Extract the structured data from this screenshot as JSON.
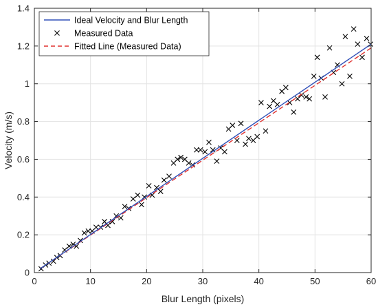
{
  "chart_data": {
    "type": "line",
    "xlabel": "Blur Length (pixels)",
    "ylabel": "Velocity (m/s)",
    "xlim": [
      0,
      60
    ],
    "ylim": [
      0,
      1.4
    ],
    "xticks": [
      0,
      10,
      20,
      30,
      40,
      50,
      60
    ],
    "xtick_labels": [
      "0",
      "10",
      "20",
      "30",
      "40",
      "50",
      "60"
    ],
    "yticks": [
      0,
      0.2,
      0.4,
      0.6,
      0.8,
      1.0,
      1.2,
      1.4
    ],
    "ytick_labels": [
      "0",
      "0.2",
      "0.4",
      "0.6",
      "0.8",
      "1",
      "1.2",
      "1.4"
    ],
    "grid": true,
    "legend_position": "top-left",
    "series": [
      {
        "name": "Ideal Velocity and Blur Length",
        "kind": "line",
        "style": "solid",
        "color": "#3050b8",
        "x": [
          1,
          60
        ],
        "y": [
          0.02,
          1.21
        ]
      },
      {
        "name": "Measured Data",
        "kind": "scatter",
        "marker": "x",
        "color": "#000000",
        "x": [
          1.2,
          2.0,
          2.6,
          3.4,
          4.0,
          4.6,
          5.4,
          6.2,
          6.9,
          7.5,
          8.2,
          8.9,
          9.6,
          10.3,
          11.0,
          11.8,
          12.5,
          13.1,
          13.9,
          14.6,
          15.4,
          16.1,
          16.8,
          17.6,
          18.4,
          19.1,
          19.6,
          20.4,
          21.0,
          21.8,
          22.5,
          23.1,
          24.0,
          24.8,
          25.5,
          26.1,
          26.8,
          27.5,
          28.2,
          28.9,
          29.6,
          30.4,
          31.1,
          31.8,
          32.5,
          33.2,
          33.9,
          34.6,
          35.3,
          36.1,
          36.8,
          37.6,
          38.2,
          39.0,
          39.7,
          40.4,
          41.2,
          41.9,
          42.6,
          43.3,
          44.1,
          44.8,
          45.5,
          46.2,
          46.9,
          47.6,
          48.4,
          49.0,
          49.8,
          50.4,
          51.1,
          51.8,
          52.6,
          53.3,
          54.0,
          54.8,
          55.4,
          56.2,
          56.9,
          57.6,
          58.4,
          59.2,
          59.9
        ],
        "y": [
          0.02,
          0.04,
          0.05,
          0.06,
          0.08,
          0.09,
          0.12,
          0.14,
          0.15,
          0.14,
          0.17,
          0.21,
          0.22,
          0.22,
          0.24,
          0.24,
          0.27,
          0.25,
          0.27,
          0.3,
          0.29,
          0.35,
          0.34,
          0.39,
          0.41,
          0.36,
          0.4,
          0.46,
          0.41,
          0.45,
          0.43,
          0.49,
          0.51,
          0.58,
          0.6,
          0.61,
          0.6,
          0.58,
          0.57,
          0.65,
          0.65,
          0.64,
          0.69,
          0.65,
          0.59,
          0.66,
          0.64,
          0.76,
          0.78,
          0.7,
          0.79,
          0.68,
          0.71,
          0.7,
          0.72,
          0.9,
          0.75,
          0.88,
          0.91,
          0.89,
          0.96,
          0.98,
          0.9,
          0.85,
          0.92,
          0.94,
          0.93,
          0.92,
          1.04,
          1.14,
          1.03,
          0.93,
          1.19,
          1.06,
          1.1,
          1.0,
          1.25,
          1.04,
          1.29,
          1.21,
          1.14,
          1.24,
          1.21
        ]
      },
      {
        "name": "Fitted Line (Measured Data)",
        "kind": "line",
        "style": "dashed",
        "color": "#e0302e",
        "x": [
          1,
          60
        ],
        "y": [
          0.02,
          1.19
        ]
      }
    ]
  }
}
